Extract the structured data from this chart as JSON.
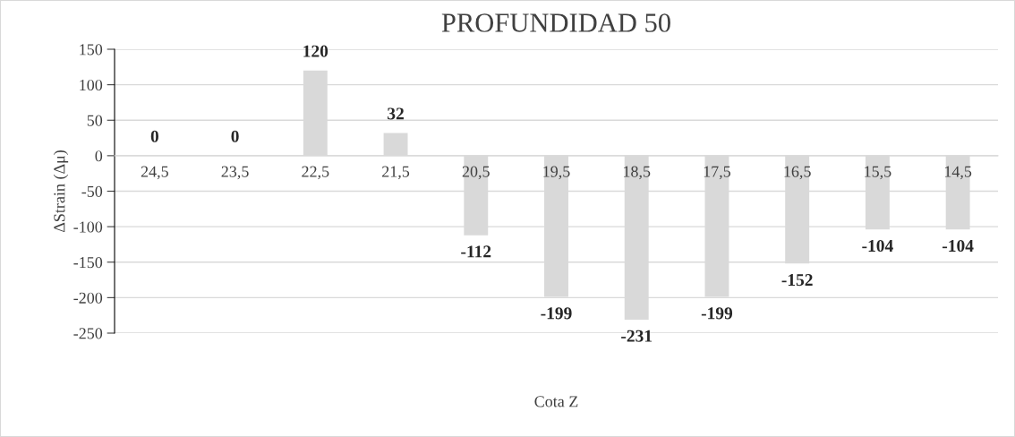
{
  "chart_data": {
    "type": "bar",
    "title": "PROFUNDIDAD 50",
    "xlabel": "Cota Z",
    "ylabel": "ΔStrain (Δμ)",
    "categories": [
      "24,5",
      "23,5",
      "22,5",
      "21,5",
      "20,5",
      "19,5",
      "18,5",
      "17,5",
      "16,5",
      "15,5",
      "14,5"
    ],
    "values": [
      0,
      0,
      120,
      32,
      -112,
      -199,
      -231,
      -199,
      -152,
      -104,
      -104
    ],
    "color": "#d9d9d9",
    "ylim": [
      -250,
      150
    ],
    "yticks": [
      -250,
      -200,
      -150,
      -100,
      -50,
      0,
      50,
      100,
      150
    ],
    "grid": "y",
    "data_labels": true,
    "legend": false
  }
}
